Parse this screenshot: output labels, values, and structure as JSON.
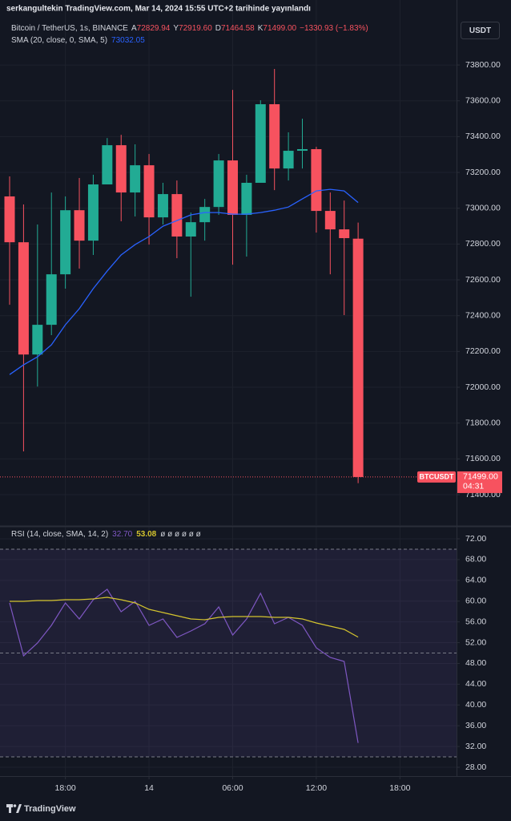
{
  "header": {
    "publisher": "serkangultekin TradingView.com, Mar 14, 2024 15:55 UTC+2 tarihinde yayınlandı",
    "symbol": "Bitcoin / TetherUS, 1s, BINANCE",
    "ohlc": [
      {
        "label": "A",
        "value": "72829.94"
      },
      {
        "label": "Y",
        "value": "72919.60"
      },
      {
        "label": "D",
        "value": "71464.58"
      },
      {
        "label": "K",
        "value": "71499.00"
      }
    ],
    "change": "−1330.93 (−1.83%)",
    "currency": "USDT"
  },
  "chart_data": [
    {
      "type": "candlestick",
      "categories": [
        null,
        null,
        null,
        null,
        null,
        null,
        null,
        null,
        null,
        null,
        null,
        null,
        null,
        null,
        null,
        null,
        null,
        null,
        null,
        null,
        null,
        null,
        null,
        null,
        null,
        null
      ],
      "series": [
        {
          "name": "BTCUSDT",
          "up_color": "#22ab94",
          "down_color": "#f7525f",
          "open": [
            73066,
            72810,
            72183,
            72349,
            72631,
            72989,
            72819,
            73133,
            73352,
            73088,
            73240,
            72949,
            73079,
            72842,
            72922,
            73007,
            73267,
            72963,
            73142,
            73581,
            73222,
            73321,
            73330,
            72985,
            72882,
            72829.94
          ],
          "high": [
            73178,
            73021,
            72909,
            73088,
            73066,
            73169,
            73187,
            73392,
            73410,
            73357,
            73303,
            73142,
            73155,
            72976,
            73052,
            73303,
            73661,
            73187,
            73603,
            73778,
            73424,
            73500,
            73343,
            73088,
            73043,
            72919.6
          ],
          "low": [
            72461,
            71642,
            72004,
            72291,
            72551,
            72663,
            72739,
            73155,
            72927,
            72954,
            72797,
            72909,
            72721,
            72506,
            72819,
            72963,
            72685,
            72730,
            73155,
            73101,
            73155,
            73222,
            72864,
            72631,
            72403,
            71464.58
          ],
          "close": [
            72810,
            72183,
            72349,
            72631,
            72989,
            72819,
            73133,
            73352,
            73088,
            73240,
            72949,
            73079,
            72842,
            72922,
            73007,
            73267,
            72963,
            73142,
            73581,
            73222,
            73321,
            73330,
            72985,
            72882,
            72833,
            71499
          ]
        },
        {
          "type": "line",
          "name": "SMA (20, close, 0, SMA, 5)",
          "color": "#2962ff",
          "legend_value": "73032.05",
          "values": [
            72071,
            72125,
            72170,
            72237,
            72349,
            72439,
            72551,
            72649,
            72739,
            72797,
            72842,
            72900,
            72931,
            72963,
            72976,
            72976,
            72967,
            72967,
            72976,
            72989,
            73007,
            73052,
            73097,
            73106,
            73097,
            73032.05
          ]
        }
      ],
      "ylim": [
        71230,
        74163
      ],
      "yticks": [
        {
          "value": 71400,
          "label": "71400.00"
        },
        {
          "value": 71600,
          "label": "71600.00"
        },
        {
          "value": 71800,
          "label": "71800.00"
        },
        {
          "value": 72000,
          "label": "72000.00"
        },
        {
          "value": 72200,
          "label": "72200.00"
        },
        {
          "value": 72400,
          "label": "72400.00"
        },
        {
          "value": 72600,
          "label": "72600.00"
        },
        {
          "value": 72800,
          "label": "72800.00"
        },
        {
          "value": 73000,
          "label": "73000.00"
        },
        {
          "value": 73200,
          "label": "73200.00"
        },
        {
          "value": 73400,
          "label": "73400.00"
        },
        {
          "value": 73600,
          "label": "73600.00"
        },
        {
          "value": 73800,
          "label": "73800.00"
        }
      ],
      "grid": true,
      "last_price": {
        "label": "71499.00",
        "countdown": "04:31"
      }
    },
    {
      "type": "line",
      "title": "RSI (14, close, SMA, 14, 2)",
      "flags": "ø ø ø ø ø ø",
      "series": [
        {
          "color": "#7e57c2",
          "legend_value": "32.70",
          "values": [
            59.65,
            49.46,
            51.93,
            55.33,
            59.65,
            56.56,
            60.27,
            62.27,
            57.95,
            59.96,
            55.33,
            56.56,
            53.01,
            54.24,
            55.63,
            58.88,
            53.47,
            56.56,
            61.5,
            55.63,
            56.87,
            55.33,
            51,
            49.15,
            48.38,
            32.7
          ]
        },
        {
          "color": "#d4c42e",
          "legend_value": "53.08",
          "values": [
            59.96,
            59.96,
            60.11,
            60.11,
            60.27,
            60.27,
            60.42,
            60.73,
            60.27,
            59.65,
            58.41,
            57.8,
            57.18,
            56.56,
            56.41,
            56.87,
            57.02,
            57.02,
            57.02,
            56.87,
            56.87,
            56.56,
            55.79,
            55.17,
            54.55,
            53.08
          ]
        }
      ],
      "levels": [
        70,
        50,
        30
      ],
      "ylim": [
        26.3,
        74.32
      ],
      "yticks": [
        {
          "value": 28,
          "label": "28.00"
        },
        {
          "value": 32,
          "label": "32.00"
        },
        {
          "value": 36,
          "label": "36.00"
        },
        {
          "value": 40,
          "label": "40.00"
        },
        {
          "value": 44,
          "label": "44.00"
        },
        {
          "value": 48,
          "label": "48.00"
        },
        {
          "value": 52,
          "label": "52.00"
        },
        {
          "value": 56,
          "label": "56.00"
        },
        {
          "value": 60,
          "label": "60.00"
        },
        {
          "value": 64,
          "label": "64.00"
        },
        {
          "value": 68,
          "label": "68.00"
        },
        {
          "value": 72,
          "label": "72.00"
        }
      ],
      "xlim": [
        -0.69,
        32.06
      ],
      "xticks": [
        {
          "value": 4,
          "label": "18:00"
        },
        {
          "value": 10,
          "label": "14"
        },
        {
          "value": 16,
          "label": "06:00"
        },
        {
          "value": 22,
          "label": "12:00"
        },
        {
          "value": 28,
          "label": "18:00"
        }
      ],
      "grid": true
    }
  ],
  "footer": {
    "logo": "TradingView"
  }
}
